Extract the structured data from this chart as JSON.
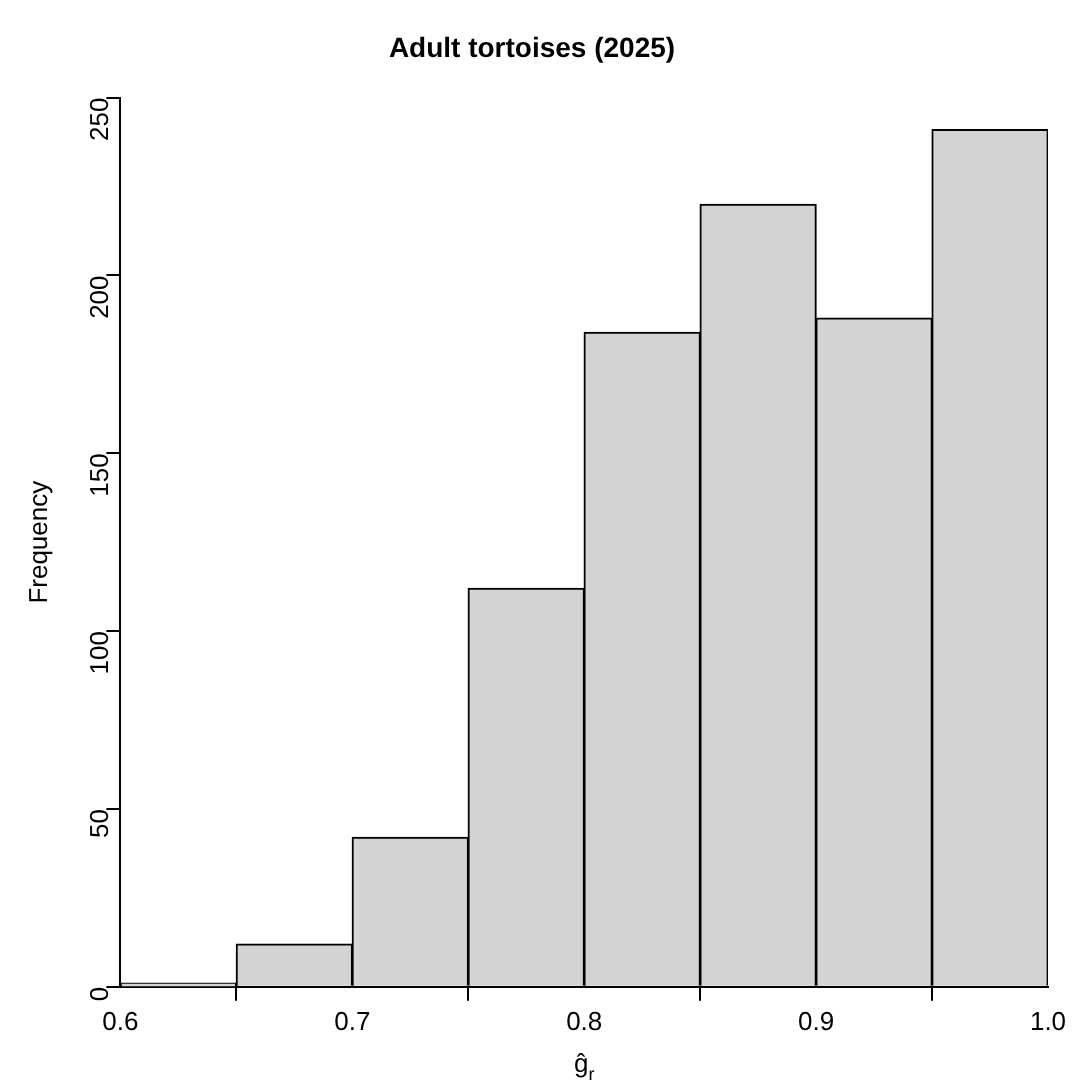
{
  "chart_data": {
    "type": "histogram",
    "title": "Adult tortoises (2025)",
    "xlabel": "ĝ$_{r}$",
    "ylabel": "Frequency",
    "bins": [
      0.6,
      0.65,
      0.7,
      0.75,
      0.8,
      0.85,
      0.9,
      0.95,
      1.0
    ],
    "values": [
      1,
      12,
      42,
      112,
      184,
      220,
      188,
      241
    ],
    "color": "#d3d3d3",
    "xlim": [
      0.6,
      1.0
    ],
    "xticks": [
      {
        "value": 0.6,
        "label": "0.6"
      },
      {
        "value": 0.7,
        "label": "0.7"
      },
      {
        "value": 0.8,
        "label": "0.8"
      },
      {
        "value": 0.9,
        "label": "0.9"
      },
      {
        "value": 1.0,
        "label": "1.0"
      }
    ],
    "ylim": [
      0,
      250
    ],
    "yticks": [
      0,
      50,
      100,
      150,
      200,
      250
    ],
    "grid": false,
    "legend": false
  }
}
